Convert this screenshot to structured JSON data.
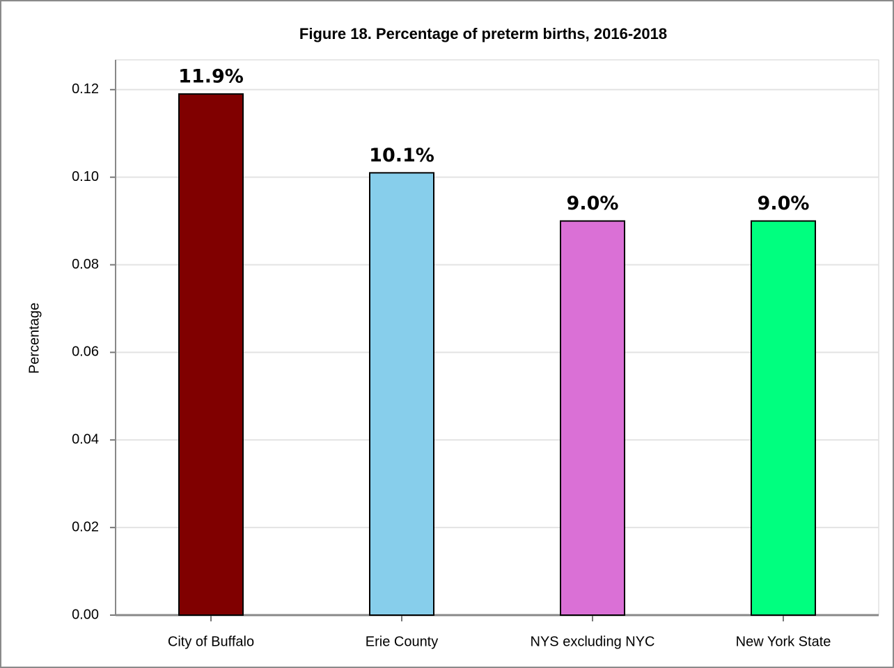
{
  "chart_data": {
    "type": "bar",
    "title": "Figure 18. Percentage of preterm births, 2016-2018",
    "y_label": "Percentage",
    "categories": [
      "City of Buffalo",
      "Erie County",
      "NYS excluding NYC",
      "New York State"
    ],
    "values": [
      0.119,
      0.101,
      0.09,
      0.09
    ],
    "value_labels": [
      "11.9%",
      "10.1%",
      "9.0%",
      "9.0%"
    ],
    "colors": [
      "#800000",
      "#87ceeb",
      "#da70d6",
      "#00ff7f"
    ],
    "ylim": [
      0,
      0.1268
    ],
    "yticks": [
      {
        "value": 0,
        "label": "0.00"
      },
      0.02,
      0.04,
      0.06,
      0.08,
      {
        "value": 0.1,
        "label": "0.10"
      },
      0.12
    ],
    "grid": true
  }
}
